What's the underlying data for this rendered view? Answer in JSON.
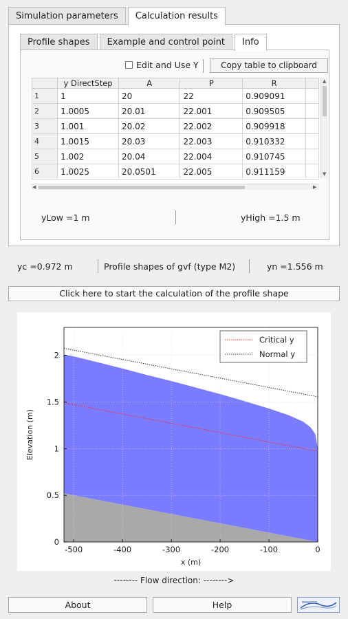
{
  "tabs": {
    "top": [
      "Simulation parameters",
      "Calculation results"
    ],
    "inner": [
      "Profile shapes",
      "Example and control point",
      "Info"
    ]
  },
  "table_controls": {
    "edit_label": "Edit and Use Y",
    "copy_button": "Copy table to clipboard"
  },
  "table": {
    "columns": [
      "y DirectStep",
      "A",
      "P",
      "R"
    ],
    "rows": [
      {
        "n": "1",
        "c": [
          "1",
          "20",
          "22",
          "0.909091"
        ]
      },
      {
        "n": "2",
        "c": [
          "1.0005",
          "20.01",
          "22.001",
          "0.909505"
        ]
      },
      {
        "n": "3",
        "c": [
          "1.001",
          "20.02",
          "22.002",
          "0.909918"
        ]
      },
      {
        "n": "4",
        "c": [
          "1.0015",
          "20.03",
          "22.003",
          "0.910332"
        ]
      },
      {
        "n": "5",
        "c": [
          "1.002",
          "20.04",
          "22.004",
          "0.910745"
        ]
      },
      {
        "n": "6",
        "c": [
          "1.0025",
          "20.0501",
          "22.005",
          "0.911159"
        ]
      }
    ]
  },
  "limits": {
    "ylow": "yLow =1  m",
    "yhigh": "yHigh  =1.5  m"
  },
  "summary": {
    "yc": "yc  =0.972  m",
    "profile": "Profile shapes of gvf (type M2)",
    "yn": "yn  =1.556  m"
  },
  "calc_button": "Click here to start the calculation of the profile shape",
  "chart_data": {
    "type": "area",
    "xlabel": "x (m)",
    "ylabel": "Elevation (m)",
    "xlim": [
      -520,
      0
    ],
    "ylim": [
      0,
      2.3
    ],
    "xticks": [
      -500,
      -400,
      -300,
      -200,
      -100,
      0
    ],
    "yticks": [
      0,
      0.5,
      1,
      1.5,
      2
    ],
    "grid": true,
    "legend_position": "top-right",
    "colors": {
      "water": "#7b7bff",
      "bed": "#a9a9a9",
      "critical": "#ff2a2a",
      "normal": "#333333"
    },
    "bed": {
      "x": [
        -520,
        0
      ],
      "y": [
        0.52,
        0
      ]
    },
    "series": [
      {
        "name": "Critical y",
        "x": [
          -520,
          0
        ],
        "y": [
          1.492,
          0.972
        ],
        "style": "dotted"
      },
      {
        "name": "Normal y",
        "x": [
          -520,
          0
        ],
        "y": [
          2.076,
          1.556
        ],
        "style": "dotted"
      }
    ],
    "water_surface": {
      "x": [
        -520,
        -500,
        -450,
        -400,
        -350,
        -300,
        -250,
        -200,
        -150,
        -100,
        -60,
        -30,
        -15,
        -5,
        0
      ],
      "y": [
        2.01,
        1.99,
        1.925,
        1.86,
        1.79,
        1.725,
        1.655,
        1.585,
        1.51,
        1.43,
        1.36,
        1.29,
        1.23,
        1.155,
        1.0
      ]
    }
  },
  "flow_direction": "-------- Flow direction:  -------->",
  "buttons": {
    "about": "About",
    "help": "Help"
  }
}
